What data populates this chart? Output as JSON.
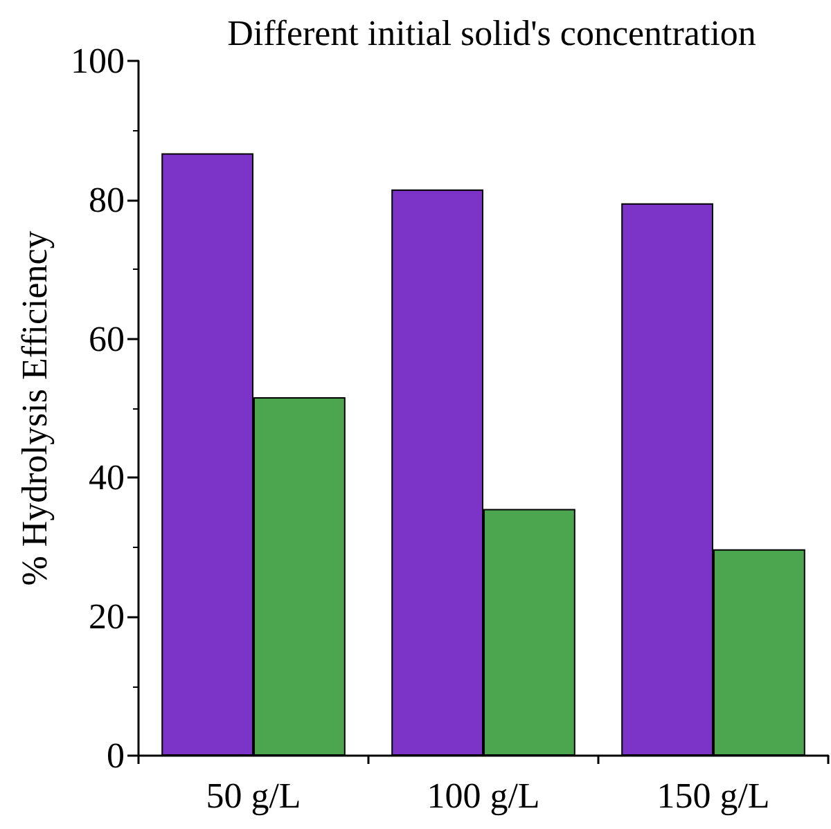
{
  "chart_data": {
    "type": "bar",
    "title": "Different initial solid's concentration",
    "ylabel": "% Hydrolysis Efficiency",
    "categories": [
      "50 g/L",
      "100 g/L",
      "150 g/L"
    ],
    "series": [
      {
        "color": "#7b33c8",
        "values": [
          86.7,
          81.5,
          79.5
        ]
      },
      {
        "color": "#4ba64f",
        "values": [
          51.6,
          35.5,
          29.7
        ]
      }
    ],
    "ylim": [
      0,
      100
    ],
    "yticks": [
      0,
      20,
      40,
      60,
      80,
      100
    ],
    "grid": false
  }
}
